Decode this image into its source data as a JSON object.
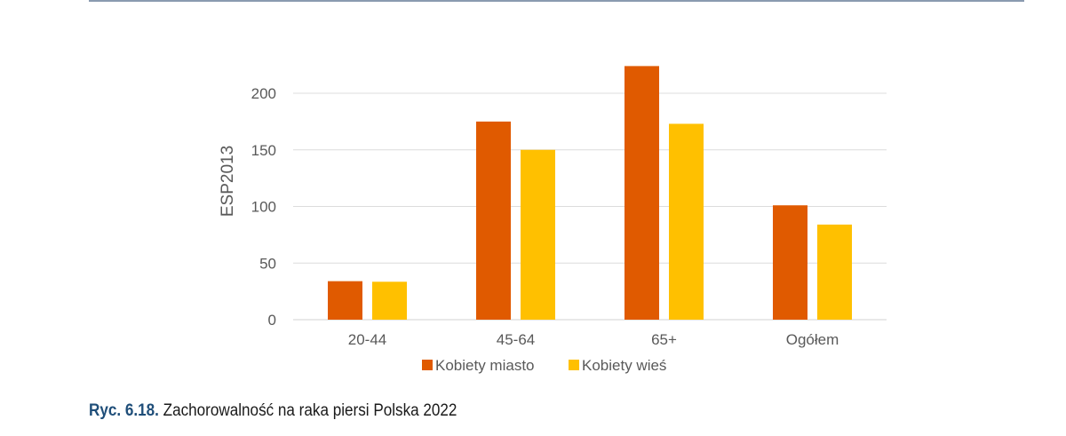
{
  "caption": {
    "label": "Ryc. 6.18.",
    "text": " Zachorowalność na raka piersi Polska 2022"
  },
  "chart_data": {
    "type": "bar",
    "title": "",
    "xlabel": "",
    "ylabel": "ESP2013",
    "categories": [
      "20-44",
      "45-64",
      "65+",
      "Ogółem"
    ],
    "series": [
      {
        "name": "Kobiety miasto",
        "color": "#E05A00",
        "values": [
          34,
          175,
          224,
          101
        ]
      },
      {
        "name": "Kobiety wieś",
        "color": "#FFC000",
        "values": [
          33.5,
          150,
          173,
          84
        ]
      }
    ],
    "ylim": [
      0,
      200
    ],
    "yticks": [
      0,
      50,
      100,
      150,
      200
    ],
    "grid": true,
    "legend_position": "bottom"
  }
}
